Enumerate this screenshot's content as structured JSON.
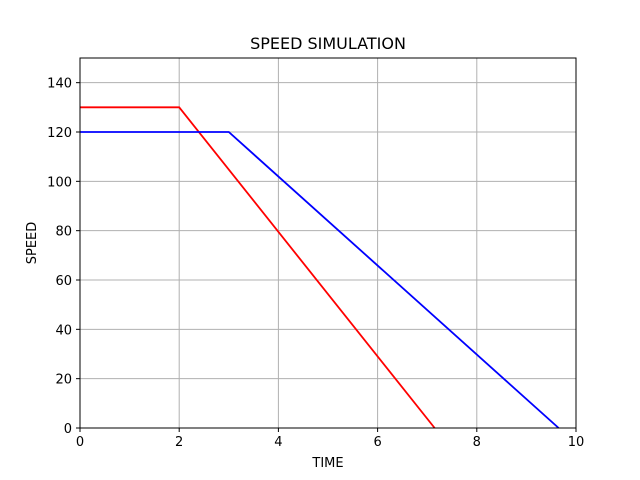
{
  "chart_data": {
    "type": "line",
    "title": "SPEED SIMULATION",
    "xlabel": "TIME",
    "ylabel": "SPEED",
    "xlim": [
      0,
      10
    ],
    "ylim": [
      0,
      150
    ],
    "xticks": [
      0,
      2,
      4,
      6,
      8,
      10
    ],
    "yticks": [
      0,
      20,
      40,
      60,
      80,
      100,
      120,
      140
    ],
    "grid": true,
    "series": [
      {
        "color": "#ff0000",
        "points": [
          [
            0,
            130
          ],
          [
            2,
            130
          ],
          [
            7.15,
            0
          ]
        ]
      },
      {
        "color": "#0000ff",
        "points": [
          [
            0,
            120
          ],
          [
            3,
            120
          ],
          [
            9.65,
            0
          ]
        ]
      }
    ]
  }
}
